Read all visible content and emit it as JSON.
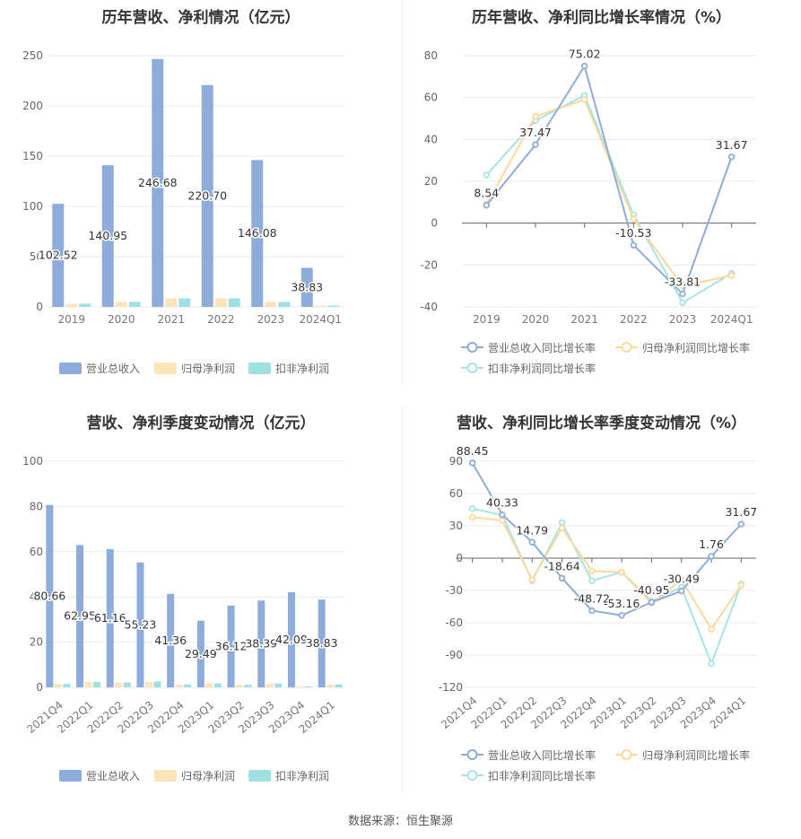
{
  "source": "数据来源：恒生聚源",
  "colors": {
    "revenue": "#8eacdb",
    "net_profit": "#fde4b8",
    "deducted_profit": "#9fe0e3",
    "revenue_line": "#8eacdb",
    "net_profit_line": "#ffd79b",
    "deducted_line": "#a5e4e6"
  },
  "chart_data": [
    {
      "type": "bar",
      "title": "历年营收、净利情况（亿元）",
      "categories": [
        "2019",
        "2020",
        "2021",
        "2022",
        "2023",
        "2024Q1"
      ],
      "ylim": [
        0,
        250
      ],
      "yticks": [
        0,
        50,
        100,
        150,
        200,
        250
      ],
      "series": [
        {
          "name": "营业总收入",
          "values": [
            102.52,
            140.95,
            246.68,
            220.7,
            146.08,
            38.83
          ],
          "labels": [
            "102.52",
            "140.95",
            "246.68",
            "220.70",
            "146.08",
            "38.83"
          ]
        },
        {
          "name": "归母净利润",
          "values": [
            3.0,
            5.0,
            8.5,
            8.6,
            5.2,
            1.2
          ]
        },
        {
          "name": "扣非净利润",
          "values": [
            3.2,
            5.0,
            8.6,
            8.5,
            5.0,
            1.3
          ]
        }
      ],
      "legend": "bottom"
    },
    {
      "type": "line",
      "title": "历年营收、净利同比增长率情况（%）",
      "categories": [
        "2019",
        "2020",
        "2021",
        "2022",
        "2023",
        "2024Q1"
      ],
      "ylim": [
        -40,
        80
      ],
      "yticks": [
        -40,
        -20,
        0,
        20,
        40,
        60,
        80
      ],
      "series": [
        {
          "name": "营业总收入同比增长率",
          "values": [
            8.54,
            37.47,
            75.02,
            -10.53,
            -33.81,
            31.67
          ],
          "labels": [
            "8.54",
            "37.47",
            "75.02",
            "-10.53",
            "-33.81",
            "31.67"
          ]
        },
        {
          "name": "归母净利润同比增长率",
          "values": [
            9,
            51,
            59,
            2,
            -30,
            -25
          ]
        },
        {
          "name": "扣非净利润同比增长率",
          "values": [
            23,
            49,
            61,
            4,
            -38,
            -24
          ]
        }
      ],
      "legend": "bottom"
    },
    {
      "type": "bar",
      "title": "营收、净利季度变动情况（亿元）",
      "categories": [
        "2021Q4",
        "2022Q1",
        "2022Q2",
        "2022Q3",
        "2022Q4",
        "2023Q1",
        "2023Q2",
        "2023Q3",
        "2023Q4",
        "2024Q1"
      ],
      "ylim": [
        0,
        100
      ],
      "yticks": [
        0,
        20,
        40,
        60,
        80,
        100
      ],
      "series": [
        {
          "name": "营业总收入",
          "values": [
            80.66,
            62.95,
            61.16,
            55.23,
            41.36,
            29.49,
            36.12,
            38.39,
            42.09,
            38.83
          ],
          "labels": [
            "80.66",
            "62.95",
            "61.16",
            "55.23",
            "41.36",
            "29.49",
            "36.12",
            "38.39",
            "42.09",
            "38.83"
          ]
        },
        {
          "name": "归母净利润",
          "values": [
            1.5,
            2.5,
            2.0,
            2.5,
            1.2,
            1.8,
            1.2,
            1.8,
            0.5,
            1.2
          ]
        },
        {
          "name": "扣非净利润",
          "values": [
            1.5,
            2.5,
            2.2,
            2.6,
            1.3,
            1.8,
            1.1,
            1.7,
            0.4,
            1.3
          ]
        }
      ],
      "legend": "bottom"
    },
    {
      "type": "line",
      "title": "营收、净利同比增长率季度变动情况（%）",
      "categories": [
        "2021Q4",
        "2022Q1",
        "2022Q2",
        "2022Q3",
        "2022Q4",
        "2023Q1",
        "2023Q2",
        "2023Q3",
        "2023Q4",
        "2024Q1"
      ],
      "ylim": [
        -120,
        90
      ],
      "yticks": [
        -120,
        -90,
        -60,
        -30,
        0,
        30,
        60,
        90
      ],
      "series": [
        {
          "name": "营业总收入同比增长率",
          "values": [
            88.45,
            40.33,
            14.79,
            -18.64,
            -48.72,
            -53.16,
            -40.95,
            -30.49,
            1.76,
            31.67
          ],
          "labels": [
            "88.45",
            "40.33",
            "14.79",
            "-18.64",
            "-48.72",
            "-53.16",
            "-40.95",
            "-30.49",
            "1.76",
            "31.67"
          ]
        },
        {
          "name": "归母净利润同比增长率",
          "values": [
            38,
            35,
            -20,
            28,
            -12,
            -13,
            -42,
            -20,
            -66,
            -25
          ]
        },
        {
          "name": "扣非净利润同比增长率",
          "values": [
            46,
            40,
            -21,
            33,
            -21,
            -13,
            -40,
            -27,
            -98,
            -24
          ]
        }
      ],
      "legend": "bottom"
    }
  ]
}
